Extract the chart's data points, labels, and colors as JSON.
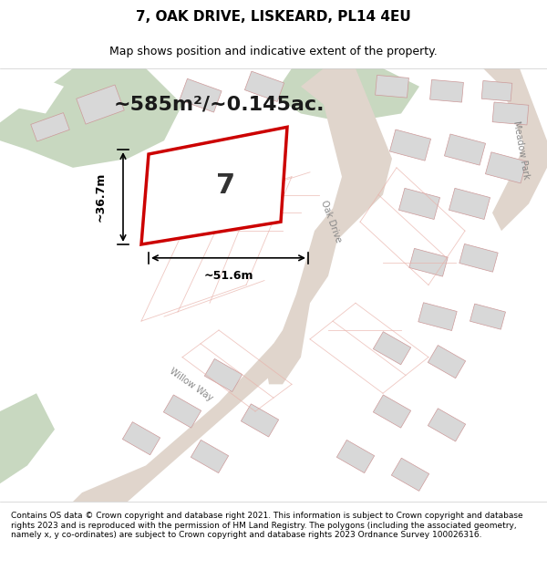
{
  "title": "7, OAK DRIVE, LISKEARD, PL14 4EU",
  "subtitle": "Map shows position and indicative extent of the property.",
  "area_text": "~585m²/~0.145ac.",
  "width_label": "~51.6m",
  "height_label": "~36.7m",
  "number_label": "7",
  "footer": "Contains OS data © Crown copyright and database right 2021. This information is subject to Crown copyright and database rights 2023 and is reproduced with the permission of HM Land Registry. The polygons (including the associated geometry, namely x, y co-ordinates) are subject to Crown copyright and database rights 2023 Ordnance Survey 100026316.",
  "bg_color": "#f0ede8",
  "map_bg": "#f5f2ef",
  "green_area_color": "#c8d8c0",
  "road_color": "#e0d0c8",
  "plot_line_color": "#cc0000",
  "plot_fill_color": "#ffffff",
  "building_color": "#d8d8d8",
  "measure_color": "#000000",
  "title_fontsize": 11,
  "subtitle_fontsize": 9,
  "area_fontsize": 16,
  "footer_fontsize": 6.5
}
